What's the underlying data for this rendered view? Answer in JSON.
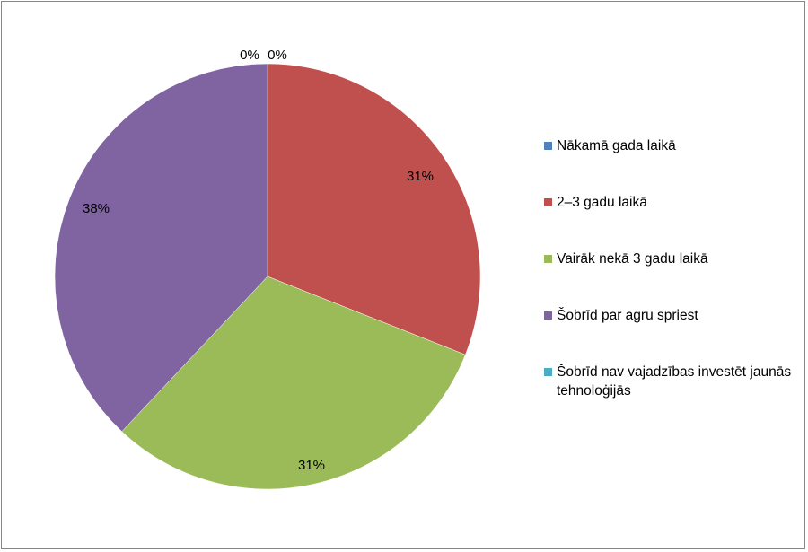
{
  "chart_data": {
    "type": "pie",
    "categories": [
      "Nākamā gada laikā",
      "2–3 gadu laikā",
      "Vairāk nekā 3 gadu laikā",
      "Šobrīd par agru spriest",
      "Šobrīd nav vajadzības investēt jaunās tehnoloģijās"
    ],
    "values": [
      0,
      31,
      31,
      38,
      0
    ],
    "labels": [
      "0%",
      "31%",
      "31%",
      "38%",
      "0%"
    ],
    "colors": [
      "#4F81BD",
      "#C0504D",
      "#9BBB59",
      "#8064A2",
      "#4BACC6"
    ],
    "legend_position": "right",
    "title": ""
  }
}
